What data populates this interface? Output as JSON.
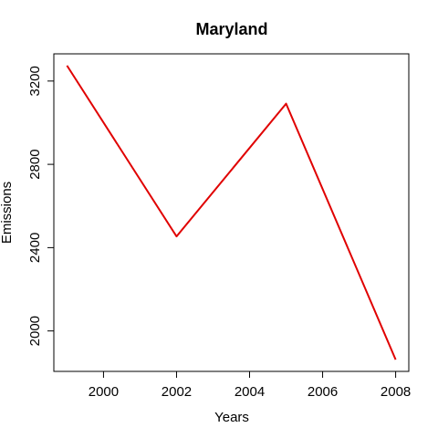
{
  "chart_data": {
    "type": "line",
    "title": "Maryland",
    "xlabel": "Years",
    "ylabel": "Emissions",
    "x": [
      1999,
      2002,
      2005,
      2008
    ],
    "series": [
      {
        "values": [
          3274.18,
          2453.92,
          3091.35,
          1862.28
        ],
        "color": "#e00000"
      }
    ],
    "xlim": [
      1999,
      2008
    ],
    "ylim": [
      1862.28,
      3274.18
    ],
    "x_ticks": [
      2000,
      2002,
      2004,
      2006,
      2008
    ],
    "y_ticks": [
      2000,
      2400,
      2800,
      3200
    ],
    "x_tick_labels": [
      "2000",
      "2002",
      "2004",
      "2006",
      "2008"
    ],
    "y_tick_labels": [
      "2000",
      "2400",
      "2800",
      "3200"
    ],
    "grid": false,
    "legend": "none"
  }
}
